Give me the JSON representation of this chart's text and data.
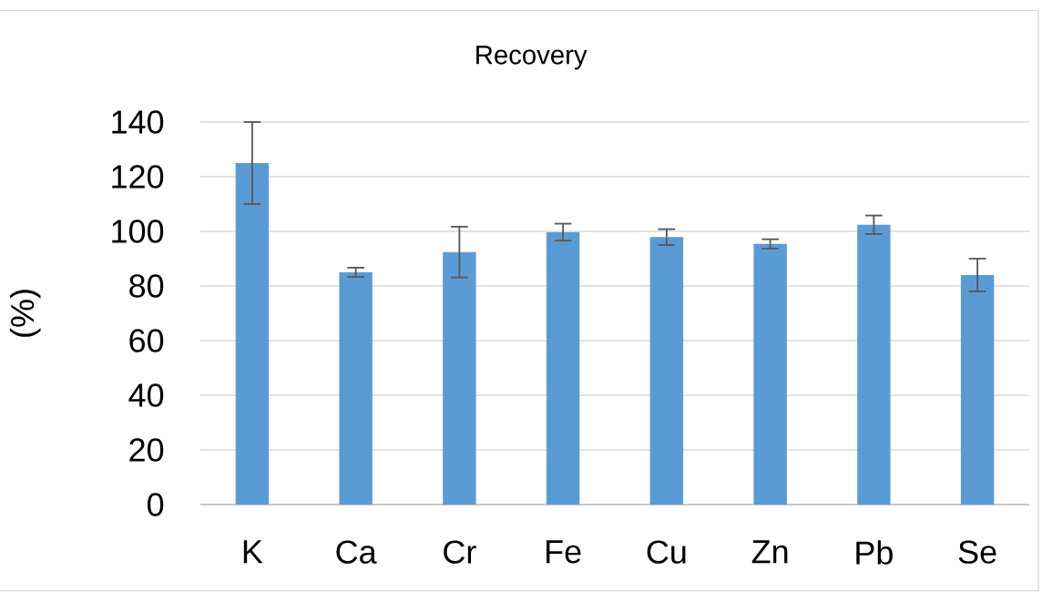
{
  "chart_data": {
    "type": "bar",
    "title": "Recovery",
    "ylabel": "(%)",
    "categories": [
      "K",
      "Ca",
      "Cr",
      "Fe",
      "Cu",
      "Zn",
      "Pb",
      "Se"
    ],
    "values": [
      125,
      85,
      92.4,
      99.7,
      97.9,
      95.4,
      102.4,
      84
    ],
    "errors": [
      15,
      1.7,
      9.3,
      3.1,
      2.9,
      1.7,
      3.4,
      6
    ],
    "color": "#5b9bd5",
    "ylim": [
      0,
      140
    ],
    "yticks": [
      0,
      20,
      40,
      60,
      80,
      100,
      120,
      140
    ],
    "grid": "y"
  }
}
